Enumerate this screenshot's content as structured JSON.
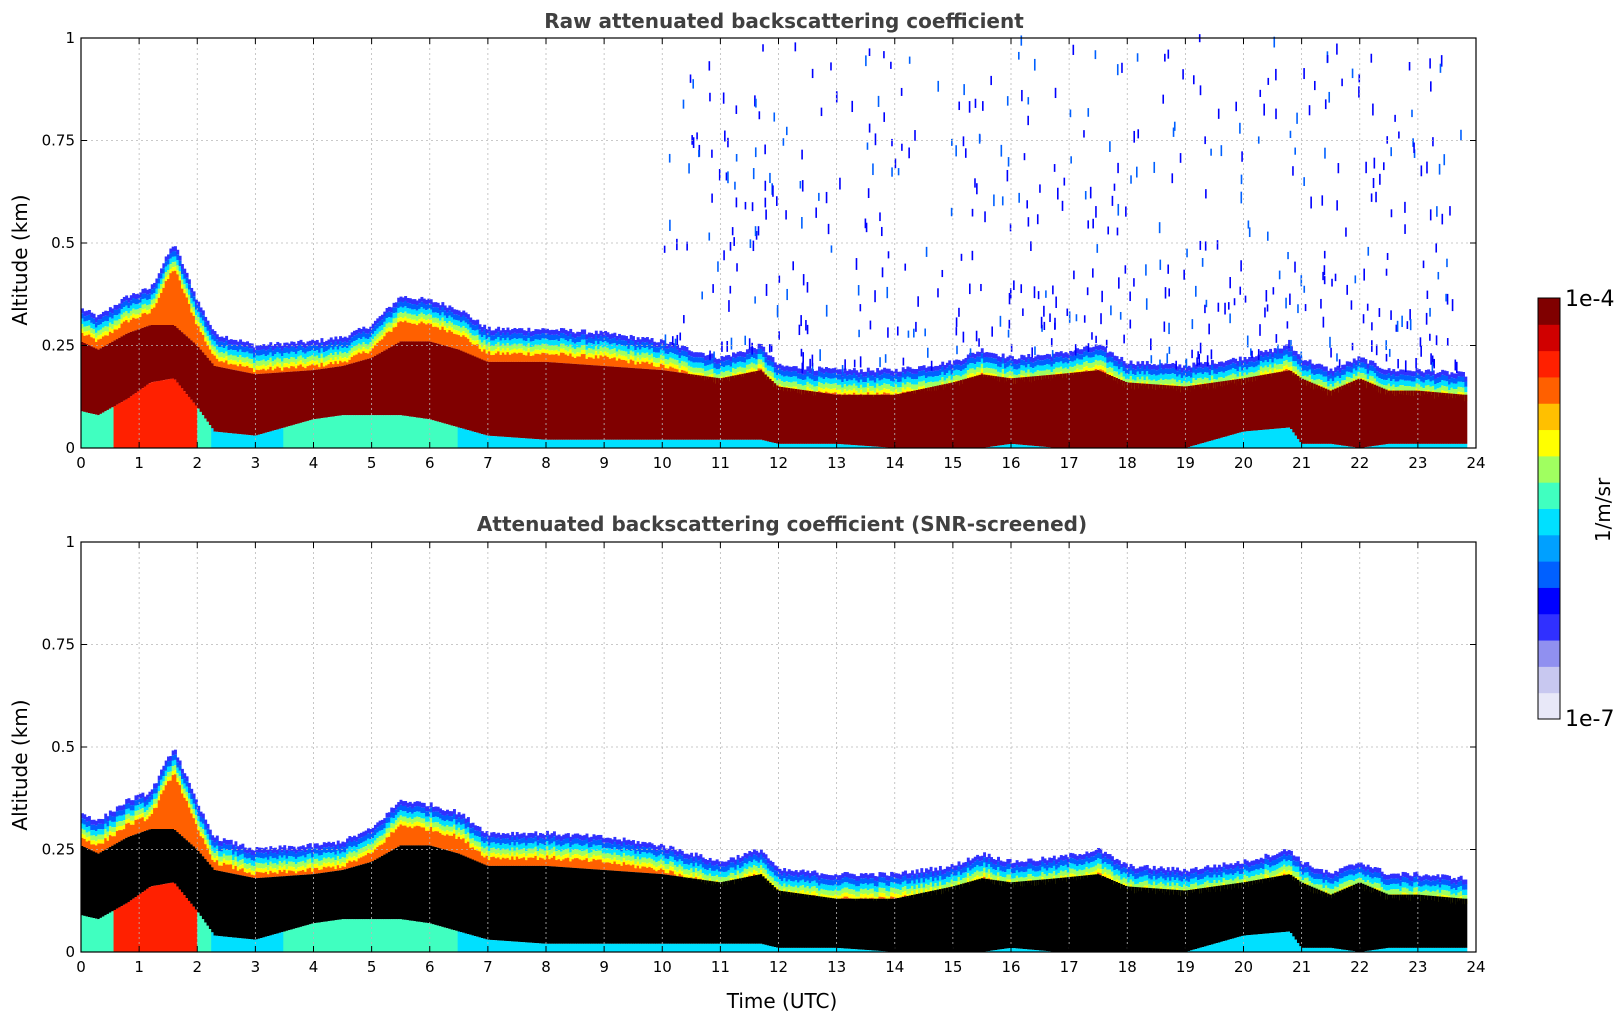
{
  "chart_data": [
    {
      "type": "heatmap",
      "title": "Raw attenuated backscattering coefficient",
      "xlabel": "",
      "ylabel": "Altitude (km)",
      "xlim": [
        0,
        24
      ],
      "ylim": [
        0,
        1
      ],
      "xticks": [
        "0",
        "1",
        "2",
        "3",
        "4",
        "5",
        "6",
        "7",
        "8",
        "9",
        "10",
        "11",
        "12",
        "13",
        "14",
        "15",
        "16",
        "17",
        "18",
        "19",
        "20",
        "21",
        "22",
        "23",
        "24"
      ],
      "yticks": [
        "0",
        "0.25",
        "0.5",
        "0.75",
        "1"
      ],
      "grid": true,
      "screened": false,
      "data_end_time": 23.8,
      "layer_top_km": {
        "time": [
          0,
          0.3,
          0.8,
          1.2,
          1.6,
          2.0,
          2.3,
          3,
          4,
          4.5,
          5.0,
          5.5,
          6.0,
          6.5,
          7,
          8,
          9,
          10,
          11,
          11.7,
          12,
          13,
          14,
          15,
          15.5,
          16,
          16.8,
          17.5,
          18,
          19,
          20,
          20.8,
          21,
          21.5,
          22,
          22.5,
          23,
          23.8
        ],
        "value": [
          0.34,
          0.32,
          0.37,
          0.39,
          0.5,
          0.36,
          0.28,
          0.25,
          0.26,
          0.27,
          0.3,
          0.37,
          0.36,
          0.34,
          0.29,
          0.29,
          0.28,
          0.26,
          0.22,
          0.25,
          0.2,
          0.19,
          0.19,
          0.21,
          0.24,
          0.22,
          0.23,
          0.25,
          0.21,
          0.2,
          0.22,
          0.25,
          0.22,
          0.19,
          0.22,
          0.19,
          0.19,
          0.18
        ]
      },
      "core": {
        "top_km": [
          0.26,
          0.24,
          0.28,
          0.3,
          0.3,
          0.25,
          0.2,
          0.18,
          0.19,
          0.2,
          0.22,
          0.26,
          0.26,
          0.24,
          0.21,
          0.21,
          0.2,
          0.19,
          0.17,
          0.19,
          0.15,
          0.13,
          0.13,
          0.16,
          0.18,
          0.17,
          0.18,
          0.19,
          0.16,
          0.15,
          0.17,
          0.19,
          0.17,
          0.14,
          0.17,
          0.14,
          0.14,
          0.13
        ],
        "bottom_km": [
          0.09,
          0.08,
          0.12,
          0.16,
          0.17,
          0.1,
          0.04,
          0.03,
          0.07,
          0.08,
          0.08,
          0.08,
          0.07,
          0.05,
          0.03,
          0.02,
          0.02,
          0.02,
          0.02,
          0.02,
          0.01,
          0.01,
          0.0,
          0.0,
          0.0,
          0.01,
          0.0,
          0.0,
          0.0,
          0.0,
          0.04,
          0.05,
          0.01,
          0.01,
          0.0,
          0.01,
          0.01,
          0.01
        ]
      },
      "speckle": true
    },
    {
      "type": "heatmap",
      "title": "Attenuated backscattering coefficient (SNR-screened)",
      "xlabel": "Time (UTC)",
      "ylabel": "Altitude (km)",
      "xlim": [
        0,
        24
      ],
      "ylim": [
        0,
        1
      ],
      "xticks": [
        "0",
        "1",
        "2",
        "3",
        "4",
        "5",
        "6",
        "7",
        "8",
        "9",
        "10",
        "11",
        "12",
        "13",
        "14",
        "15",
        "16",
        "17",
        "18",
        "19",
        "20",
        "21",
        "22",
        "23",
        "24"
      ],
      "yticks": [
        "0",
        "0.25",
        "0.5",
        "0.75",
        "1"
      ],
      "grid": true,
      "screened": true,
      "screened_color": "#000000",
      "data_end_time": 23.8,
      "speckle": false
    }
  ],
  "colorbar": {
    "label": "1/m/sr",
    "max_label": "1e-4",
    "min_label": "1e-7",
    "scale": "log",
    "colors": [
      "#e8e8f8",
      "#c8c8f0",
      "#9090f0",
      "#3030ff",
      "#0000ff",
      "#0060ff",
      "#00a0ff",
      "#00e0ff",
      "#40ffc0",
      "#a0ff60",
      "#ffff00",
      "#ffc000",
      "#ff6000",
      "#ff2000",
      "#d00000",
      "#800000"
    ]
  }
}
